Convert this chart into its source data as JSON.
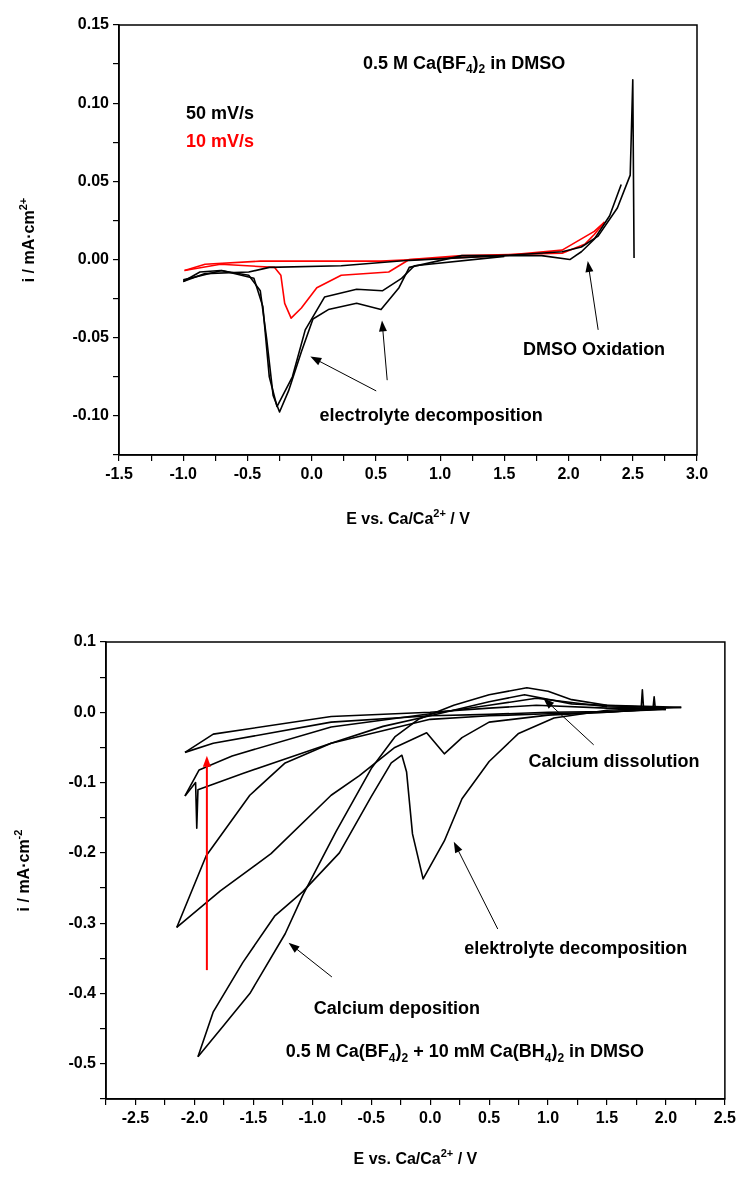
{
  "chart_data": [
    {
      "type": "line",
      "xlabel": "E vs. Ca/Ca$^{2+}$ / V",
      "ylabel": "i / mA·cm$^{2+}$",
      "legend": "top left",
      "marker": "none",
      "xlim": [
        -1.5,
        3.0
      ],
      "xticks": [
        {
          "value": -1.5,
          "label": "-1.5"
        },
        {
          "value": -1.25,
          "label": null
        },
        {
          "value": -1.0,
          "label": "-1.0"
        },
        {
          "value": -0.75,
          "label": null
        },
        {
          "value": -0.5,
          "label": "-0.5"
        },
        {
          "value": -0.25,
          "label": null
        },
        {
          "value": 0,
          "label": "0.0"
        },
        {
          "value": 0.25,
          "label": null
        },
        {
          "value": 0.5,
          "label": "0.5"
        },
        {
          "value": 0.75,
          "label": null
        },
        {
          "value": 1,
          "label": "1.0"
        },
        {
          "value": 1.25,
          "label": null
        },
        {
          "value": 1.5,
          "label": "1.5"
        },
        {
          "value": 1.75,
          "label": null
        },
        {
          "value": 2,
          "label": "2.0"
        },
        {
          "value": 2.25,
          "label": null
        },
        {
          "value": 2.5,
          "label": "2.5"
        },
        {
          "value": 2.75,
          "label": null
        },
        {
          "value": 3,
          "label": "3.0"
        }
      ],
      "ylim": [
        -0.125,
        0.15
      ],
      "yticks": [
        {
          "value": -0.125,
          "label": null
        },
        {
          "value": -0.1,
          "label": "-0.10"
        },
        {
          "value": -0.075,
          "label": null
        },
        {
          "value": -0.05,
          "label": "-0.05"
        },
        {
          "value": -0.025,
          "label": null
        },
        {
          "value": 0,
          "label": "0.00"
        },
        {
          "value": 0.025,
          "label": null
        },
        {
          "value": 0.05,
          "label": "0.05"
        },
        {
          "value": 0.075,
          "label": null
        },
        {
          "value": 0.1,
          "label": "0.10"
        },
        {
          "value": 0.125,
          "label": null
        },
        {
          "value": 0.15,
          "label": "0.15"
        }
      ],
      "annotations": [
        "0.5 M Ca(BF$_{4}$)$_{2}$ in DMSO",
        "electrolyte decomposition",
        "DMSO Oxidation"
      ],
      "series": [
        {
          "name": "50 mV/s",
          "color": "#000000",
          "x": [
            2.41,
            2.32,
            2.2,
            2.1,
            2.01,
            1.79,
            1.17,
            0.76,
            0.68,
            0.54,
            0.35,
            0.13,
            0.01,
            -0.08,
            -0.18,
            -0.25,
            -0.3,
            -0.35,
            -0.4,
            -0.49,
            -0.71,
            -0.87,
            -1.0
          ],
          "values": [
            0.048,
            0.028,
            0.013,
            0.005,
            0.0,
            0.0025,
            0.0025,
            -0.005,
            -0.018,
            -0.032,
            -0.028,
            -0.032,
            -0.038,
            -0.059,
            -0.084,
            -0.0975,
            -0.087,
            -0.051,
            -0.02,
            -0.01,
            -0.007,
            -0.008,
            -0.014
          ]
        },
        {
          "color": "#000000",
          "x": [
            -1.0,
            -0.83,
            -0.49,
            -0.33,
            0.23,
            0.76,
            1.48,
            1.95,
            2.1,
            2.23,
            2.38,
            2.48,
            2.5,
            2.51
          ],
          "values": [
            -0.014,
            -0.009,
            -0.008,
            -0.005,
            -0.004,
            -0.0005,
            0.0025,
            0.005,
            0.008,
            0.015,
            0.033,
            0.054,
            0.115,
            0.001
          ]
        },
        {
          "color": "#000000",
          "x": [
            1.5,
            0.8,
            0.7,
            0.55,
            0.35,
            0.1,
            -0.05,
            -0.15,
            -0.27,
            -0.33,
            -0.38,
            -0.45,
            -0.7,
            -1.0
          ],
          "values": [
            0.002,
            -0.004,
            -0.012,
            -0.02,
            -0.019,
            -0.024,
            -0.045,
            -0.075,
            -0.094,
            -0.075,
            -0.03,
            -0.012,
            -0.007,
            -0.013
          ]
        },
        {
          "name": "10 mV/s",
          "color": "#ff0000",
          "x": [
            2.28,
            2.2,
            2.13,
            1.95,
            1.17,
            0.76,
            0.6,
            0.23,
            0.04,
            -0.08,
            -0.16,
            -0.21,
            -0.24,
            -0.29,
            -0.71,
            -0.99
          ],
          "values": [
            0.024,
            0.016,
            0.01,
            0.004,
            0.0025,
            0.0,
            -0.008,
            -0.01,
            -0.018,
            -0.031,
            -0.0375,
            -0.028,
            -0.01,
            -0.005,
            -0.003,
            -0.007
          ]
        },
        {
          "color": "#ff0000",
          "x": [
            -0.99,
            -0.83,
            -0.4,
            0.54,
            1.48,
            1.95,
            2.2,
            2.28
          ],
          "values": [
            -0.007,
            -0.003,
            -0.001,
            -0.001,
            0.0025,
            0.006,
            0.018,
            0.024
          ]
        }
      ]
    },
    {
      "type": "line",
      "xlabel": "E vs. Ca/Ca$^{2+}$ / V",
      "ylabel": "i / mA·cm$^{-2}$",
      "marker": "none",
      "xlim": [
        -2.75,
        2.5
      ],
      "xticks": [
        {
          "value": -2.75,
          "label": null
        },
        {
          "value": -2.5,
          "label": "-2.5"
        },
        {
          "value": -2.25,
          "label": null
        },
        {
          "value": -2,
          "label": "-2.0"
        },
        {
          "value": -1.75,
          "label": null
        },
        {
          "value": -1.5,
          "label": "-1.5"
        },
        {
          "value": -1.25,
          "label": null
        },
        {
          "value": -1,
          "label": "-1.0"
        },
        {
          "value": -0.75,
          "label": null
        },
        {
          "value": -0.5,
          "label": "-0.5"
        },
        {
          "value": -0.25,
          "label": null
        },
        {
          "value": 0,
          "label": "0.0"
        },
        {
          "value": 0.25,
          "label": null
        },
        {
          "value": 0.5,
          "label": "0.5"
        },
        {
          "value": 0.75,
          "label": null
        },
        {
          "value": 1,
          "label": "1.0"
        },
        {
          "value": 1.25,
          "label": null
        },
        {
          "value": 1.5,
          "label": "1.5"
        },
        {
          "value": 1.75,
          "label": null
        },
        {
          "value": 2,
          "label": "2.0"
        },
        {
          "value": 2.25,
          "label": null
        },
        {
          "value": 2.5,
          "label": "2.5"
        }
      ],
      "ylim": [
        -0.55,
        0.1
      ],
      "yticks": [
        {
          "value": -0.55,
          "label": null
        },
        {
          "value": -0.5,
          "label": "-0.5"
        },
        {
          "value": -0.45,
          "label": null
        },
        {
          "value": -0.4,
          "label": "-0.4"
        },
        {
          "value": -0.35,
          "label": null
        },
        {
          "value": -0.3,
          "label": "-0.3"
        },
        {
          "value": -0.25,
          "label": null
        },
        {
          "value": -0.2,
          "label": "-0.2"
        },
        {
          "value": -0.15,
          "label": null
        },
        {
          "value": -0.1,
          "label": "-0.1"
        },
        {
          "value": -0.05,
          "label": null
        },
        {
          "value": 0,
          "label": "0.0"
        },
        {
          "value": 0.05,
          "label": null
        },
        {
          "value": 0.1,
          "label": "0.1"
        }
      ],
      "annotations": [
        {
          "text": "Calcium dissolution",
          "x": 0.96,
          "y": 0.02
        },
        "elektrolyte decomposition",
        "Calcium deposition",
        "0.5 M Ca(BF$_{4}$)$_{2}$ + 10 mM Ca(BH$_{4}$)$_{2}$ in DMSO"
      ],
      "series": [
        {
          "color": "#000000",
          "x": [
            2.13,
            1.5,
            1.05,
            0.75,
            0.5,
            0.27,
            0.12,
            -0.06,
            -0.15,
            -0.2,
            -0.24,
            -0.33,
            -0.5,
            -0.77,
            -1.08,
            -1.32,
            -1.59,
            -1.84,
            -1.97
          ],
          "values": [
            0.007,
            0.003,
            -0.008,
            -0.03,
            -0.07,
            -0.123,
            -0.183,
            -0.237,
            -0.173,
            -0.085,
            -0.061,
            -0.072,
            -0.12,
            -0.2,
            -0.255,
            -0.29,
            -0.356,
            -0.426,
            -0.49
          ]
        },
        {
          "color": "#000000",
          "x": [
            -1.97,
            -1.75,
            -1.53,
            -1.23,
            -1.08,
            -0.8,
            -0.5,
            -0.3,
            -0.1,
            0.2,
            0.5,
            0.82,
            1.0,
            1.2,
            1.5,
            2.13
          ],
          "values": [
            -0.49,
            -0.445,
            -0.4,
            -0.315,
            -0.26,
            -0.17,
            -0.08,
            -0.035,
            -0.01,
            0.01,
            0.025,
            0.035,
            0.03,
            0.018,
            0.01,
            0.007
          ]
        },
        {
          "color": "#000000",
          "x": [
            2.0,
            1.5,
            1.0,
            0.5,
            0.27,
            0.12,
            -0.03,
            -0.3,
            -0.6,
            -0.84,
            -1.35,
            -1.78,
            -2.15
          ],
          "values": [
            0.006,
            0.0,
            -0.004,
            -0.014,
            -0.036,
            -0.059,
            -0.029,
            -0.05,
            -0.09,
            -0.118,
            -0.201,
            -0.254,
            -0.306
          ]
        },
        {
          "color": "#000000",
          "x": [
            -2.15,
            -1.9,
            -1.53,
            -1.23,
            -0.84,
            -0.4,
            0.0,
            0.5,
            0.8,
            1.2,
            2.0
          ],
          "values": [
            -0.306,
            -0.204,
            -0.118,
            -0.072,
            -0.044,
            -0.02,
            -0.005,
            0.015,
            0.025,
            0.012,
            0.006
          ]
        },
        {
          "color": "#000000",
          "x": [
            2.0,
            1.5,
            1.0,
            0.5,
            0.0,
            -0.84,
            -1.59,
            -1.97,
            -1.98,
            -1.99,
            -2.08
          ],
          "values": [
            0.005,
            0.0,
            -0.002,
            -0.005,
            -0.01,
            -0.044,
            -0.087,
            -0.11,
            -0.165,
            -0.1,
            -0.119
          ]
        },
        {
          "color": "#000000",
          "x": [
            -2.08,
            -1.96,
            -1.68,
            -0.84,
            0.0,
            0.5,
            0.9,
            1.5,
            1.79,
            1.8,
            1.81,
            2.0
          ],
          "values": [
            -0.119,
            -0.082,
            -0.062,
            -0.021,
            -0.002,
            0.01,
            0.02,
            0.008,
            0.006,
            0.032,
            0.006,
            0.005
          ]
        },
        {
          "color": "#000000",
          "x": [
            2.0,
            1.5,
            1.0,
            0.5,
            0.0,
            -0.84,
            -1.84,
            -2.08
          ],
          "values": [
            0.004,
            0.001,
            0.0,
            -0.003,
            -0.005,
            -0.014,
            -0.044,
            -0.057
          ]
        },
        {
          "color": "#000000",
          "x": [
            -2.08,
            -1.84,
            -0.84,
            0.0,
            0.5,
            0.9,
            1.5,
            1.89,
            1.9,
            1.91,
            2.0
          ],
          "values": [
            -0.057,
            -0.031,
            -0.006,
            0.0,
            0.006,
            0.01,
            0.006,
            0.005,
            0.022,
            0.005,
            0.004
          ]
        }
      ]
    }
  ]
}
